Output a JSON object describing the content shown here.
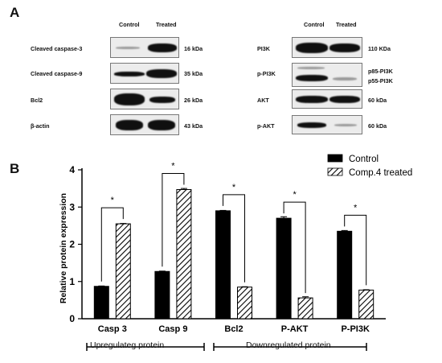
{
  "panel_a": {
    "letter": "A",
    "left_columns": [
      "Control",
      "Treated"
    ],
    "right_columns": [
      "Control",
      "Treated"
    ],
    "left_blots": [
      {
        "label": "Cleaved caspase-3",
        "kda": "16 kDa"
      },
      {
        "label": "Cleaved caspase-9",
        "kda": "35 kDa"
      },
      {
        "label": "Bcl2",
        "kda": "26 kDa"
      },
      {
        "label": "β-actin",
        "kda": "43 kDa"
      }
    ],
    "right_blots": [
      {
        "label": "PI3K",
        "kda": "110 KDa"
      },
      {
        "label": "p-PI3K",
        "kda_top": "p85-PI3K",
        "kda_bottom": "p55-PI3K"
      },
      {
        "label": "AKT",
        "kda": "60 kDa"
      },
      {
        "label": "p-AKT",
        "kda": "60 kDa"
      }
    ]
  },
  "panel_b": {
    "letter": "B",
    "group_labels": [
      "Upregulateg protein",
      "Downregulated protein"
    ]
  },
  "chart_data": {
    "type": "bar",
    "categories": [
      "Casp 3",
      "Casp 9",
      "Bcl2",
      "P-AKT",
      "P-PI3K"
    ],
    "series": [
      {
        "name": "Control",
        "values": [
          0.87,
          1.27,
          2.9,
          2.7,
          2.35
        ],
        "errors": [
          0.01,
          0.01,
          0.01,
          0.04,
          0.02
        ],
        "color": "#000000",
        "pattern": "solid"
      },
      {
        "name": "Comp.4 treated",
        "values": [
          2.55,
          3.47,
          0.85,
          0.56,
          0.77
        ],
        "errors": [
          0.01,
          0.03,
          0.01,
          0.03,
          0.01
        ],
        "color": "#000000",
        "pattern": "diagonal-hatch"
      }
    ],
    "ylabel": "Relative protein expression",
    "xlabel": "",
    "ylim": [
      0,
      4
    ],
    "yticks": [
      "0",
      "1",
      "2",
      "3",
      "4"
    ],
    "significance": [
      "*",
      "*",
      "*",
      "*",
      "*"
    ],
    "legend_position": "top-right",
    "grid": false
  }
}
